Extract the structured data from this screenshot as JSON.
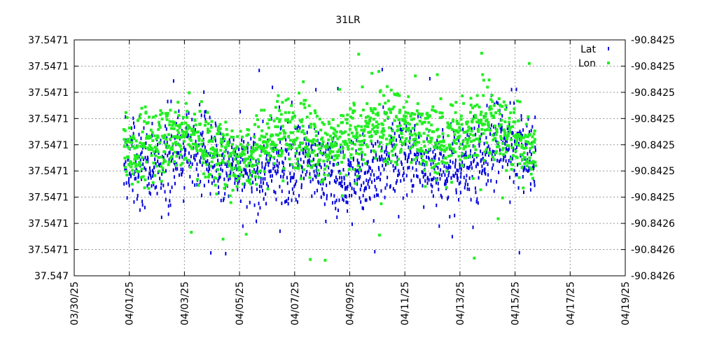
{
  "chart_data": {
    "type": "scatter",
    "title": "31LR",
    "xlabel": "",
    "ylabel": "",
    "y2label": "",
    "grid": true,
    "legend_position": "top-right",
    "x_ticks": [
      "03/30/25",
      "04/01/25",
      "04/03/25",
      "04/05/25",
      "04/07/25",
      "04/09/25",
      "04/11/25",
      "04/13/25",
      "04/15/25",
      "04/17/25",
      "04/19/25"
    ],
    "y_left_ticks": [
      "37.547",
      "37.5471",
      "37.5471",
      "37.5471",
      "37.5471",
      "37.5471",
      "37.5471",
      "37.5471",
      "37.5471",
      "37.5471"
    ],
    "y_right_ticks": [
      "-90.8426",
      "-90.8426",
      "-90.8426",
      "-90.8425",
      "-90.8425",
      "-90.8425",
      "-90.8425",
      "-90.8425",
      "-90.8425",
      "-90.8425"
    ],
    "xlim_days": [
      0,
      20
    ],
    "data_start_day": 1.8,
    "data_end_day": 16.75,
    "series": [
      {
        "name": "Lat",
        "axis": "left",
        "color": "#0000dd",
        "marker": "vertical-dash"
      },
      {
        "name": "Lon",
        "axis": "right",
        "color": "#22ee22",
        "marker": "square"
      }
    ]
  }
}
